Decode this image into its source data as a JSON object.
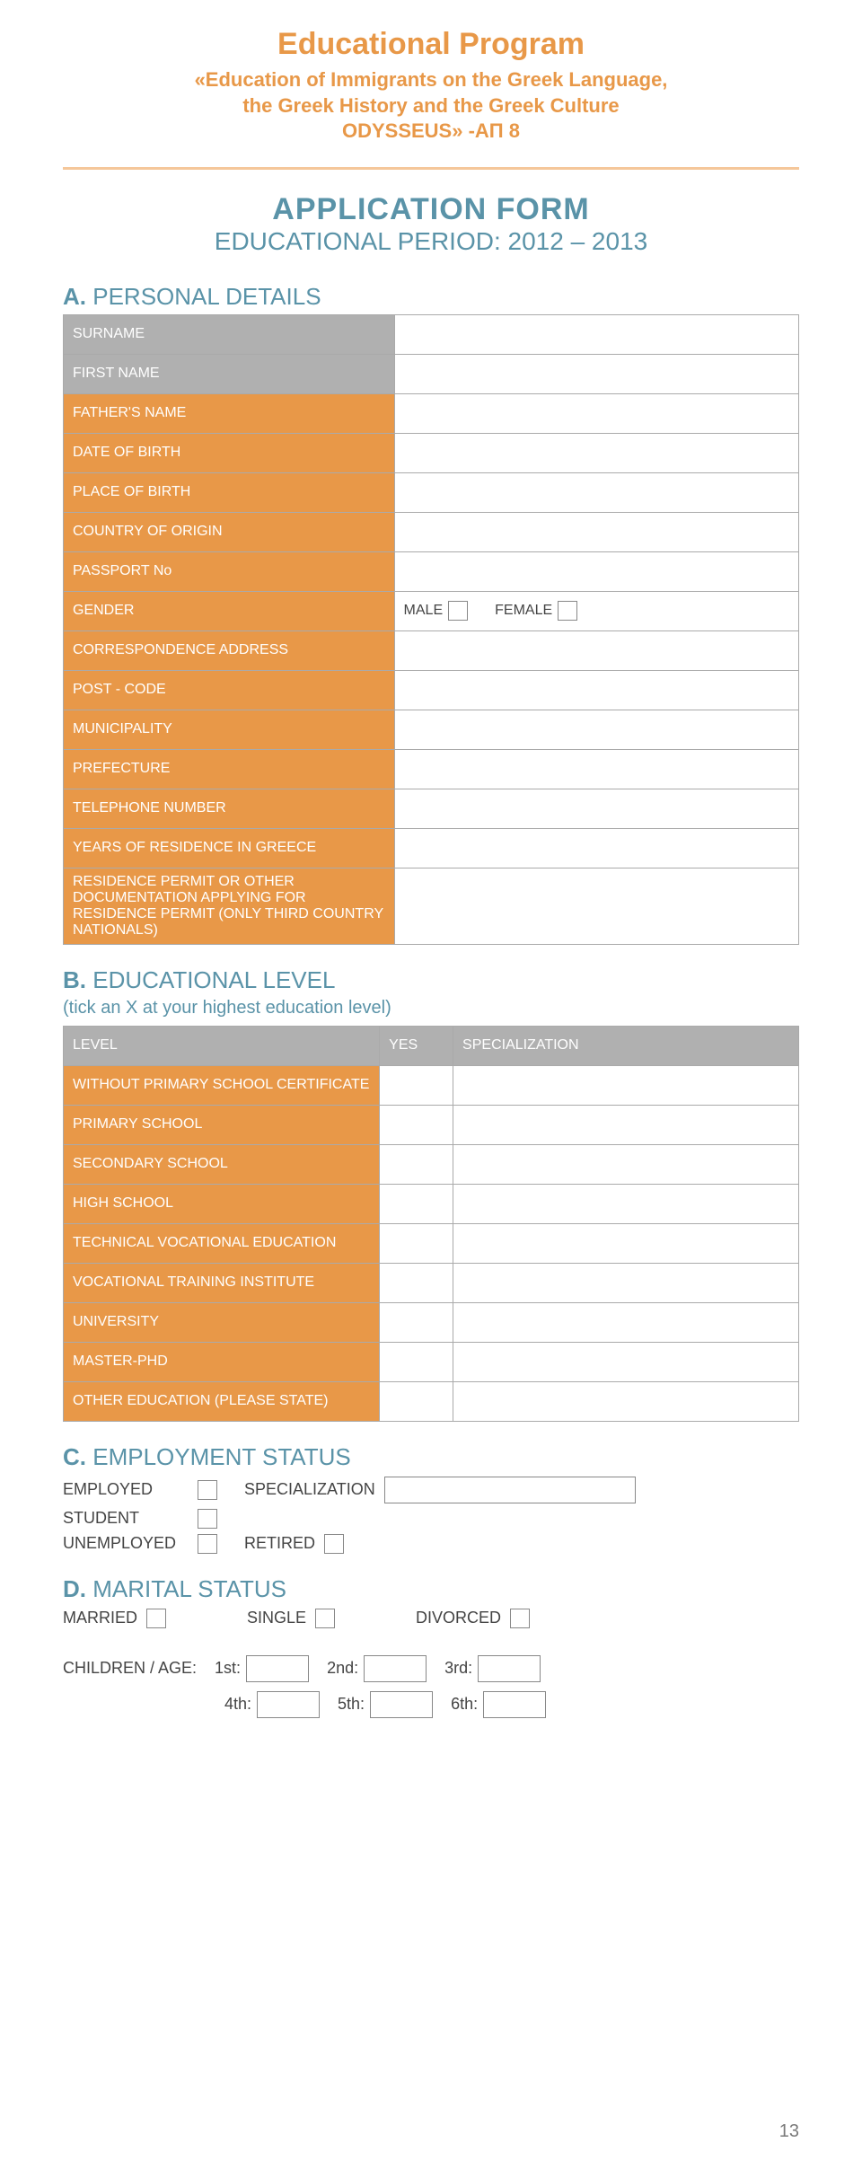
{
  "colors": {
    "orange": "#e89848",
    "orange_light": "#f5c79a",
    "teal": "#5a93a8",
    "grey_header": "#b0b0b0",
    "border": "#aaaaaa",
    "text": "#444444"
  },
  "header": {
    "title": "Educational Program",
    "sub1": "«Education of Immigrants on the Greek Language,",
    "sub2": "the Greek History and the Greek Culture",
    "sub3": "ODYSSEUS» -ΑΠ 8"
  },
  "app": {
    "title": "APPLICATION FORM",
    "subtitle": "EDUCATIONAL PERIOD: 2012 – 2013"
  },
  "sectionA": {
    "lead": "Α.",
    "title": "PERSONAL DETAILS",
    "rows": [
      {
        "label": "SURNAME",
        "bg": "grey"
      },
      {
        "label": "FIRST NAME",
        "bg": "grey"
      },
      {
        "label": "FATHER'S NAME",
        "bg": "orange"
      },
      {
        "label": "DATE OF BIRTH",
        "bg": "orange"
      },
      {
        "label": "PLACE OF BIRTH",
        "bg": "orange"
      },
      {
        "label": "COUNTRY OF ORIGIN",
        "bg": "orange"
      },
      {
        "label": "PASSPORT No",
        "bg": "orange"
      },
      {
        "label": "GENDER",
        "bg": "orange",
        "type": "gender"
      },
      {
        "label": "CORRESPONDENCE ADDRESS",
        "bg": "orange"
      },
      {
        "label": "POST - CODE",
        "bg": "orange"
      },
      {
        "label": "MUNICIPALITY",
        "bg": "orange"
      },
      {
        "label": "PREFECTURE",
        "bg": "orange"
      },
      {
        "label": "TELEPHONE NUMBER",
        "bg": "orange"
      },
      {
        "label": "YEARS OF RESIDENCE IN GREECE",
        "bg": "orange"
      },
      {
        "label": "RESIDENCE PERMIT OR OTHER DOCUMENTATION APPLYING FOR RESIDENCE PERMIT (ONLY THIRD COUNTRY NATIONALS)",
        "bg": "orange"
      }
    ],
    "gender": {
      "male": "MALE",
      "female": "FEMALE"
    }
  },
  "sectionB": {
    "lead": "Β.",
    "title": "EDUCATIONAL LEVEL",
    "note": "(tick an X at your highest education level)",
    "headers": {
      "level": "LEVEL",
      "yes": "YES",
      "spec": "SPECIALIZATION"
    },
    "rows": [
      "WITHOUT PRIMARY SCHOOL CERTIFICATE",
      "PRIMARY SCHOOL",
      "SECONDARY SCHOOL",
      "HIGH SCHOOL",
      "TECHNICAL VOCATIONAL EDUCATION",
      "VOCATIONAL TRAINING INSTITUTE",
      "UNIVERSITY",
      "MASTER-PHD",
      "OTHER EDUCATION (PLEASE STATE)"
    ]
  },
  "sectionC": {
    "lead": "C.",
    "title": "EMPLOYMENT STATUS",
    "employed": "EMPLOYED",
    "specialization": "SPECIALIZATION",
    "student": "STUDENT",
    "unemployed": "UNEMPLOYED",
    "retired": "RETIRED"
  },
  "sectionD": {
    "lead": "D.",
    "title": "MARITAL STATUS",
    "married": "MARRIED",
    "single": "SINGLE",
    "divorced": "DIVORCED",
    "children_label": "CHILDREN / AGE:",
    "ordinals": [
      "1st:",
      "2nd:",
      "3rd:",
      "4th:",
      "5th:",
      "6th:"
    ]
  },
  "page_number": "13"
}
